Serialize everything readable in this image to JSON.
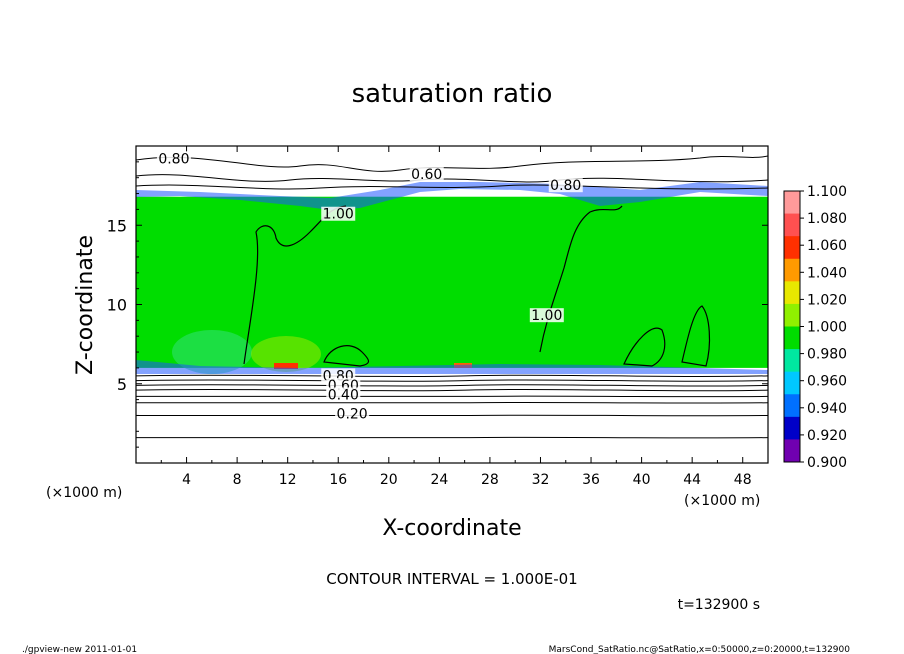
{
  "chart_data": {
    "type": "heatmap",
    "title": "saturation ratio",
    "xlabel": "X-coordinate",
    "ylabel": "Z-coordinate",
    "x_unit_left": "(×1000 m)",
    "x_unit_right": "(×1000 m)",
    "xlim": [
      0,
      50
    ],
    "ylim": [
      0,
      20
    ],
    "x_ticks": [
      4,
      8,
      12,
      16,
      20,
      24,
      28,
      32,
      36,
      40,
      44,
      48
    ],
    "y_ticks": [
      5,
      10,
      15
    ],
    "colorbar": {
      "levels": [
        "1.100",
        "1.080",
        "1.060",
        "1.040",
        "1.020",
        "1.000",
        "0.980",
        "0.960",
        "0.940",
        "0.920",
        "0.900"
      ],
      "colors": [
        "#ff9a9a",
        "#ff5050",
        "#ff3000",
        "#ff9a00",
        "#e8e800",
        "#90f000",
        "#00dd00",
        "#00e8a0",
        "#00c8ff",
        "#0070ff",
        "#0000c8",
        "#7000b0"
      ]
    },
    "contour_labels": [
      {
        "text": "0.80",
        "x": 3,
        "z": 19.1
      },
      {
        "text": "0.60",
        "x": 23,
        "z": 18.1
      },
      {
        "text": "0.80",
        "x": 34,
        "z": 17.4
      },
      {
        "text": "1.00",
        "x": 16,
        "z": 15.6
      },
      {
        "text": "1.00",
        "x": 32.5,
        "z": 9.2
      },
      {
        "text": "0.80",
        "x": 16,
        "z": 5.4
      },
      {
        "text": "0.60",
        "x": 16.4,
        "z": 4.8
      },
      {
        "text": "0.40",
        "x": 16.4,
        "z": 4.2
      },
      {
        "text": "0.20",
        "x": 17.1,
        "z": 3.0
      }
    ],
    "layers": {
      "moist_bottom": 6.0,
      "moist_top": 16.8
    },
    "contour_interval_text": "CONTOUR INTERVAL = 1.000E-01",
    "time_text": "t=132900 s"
  },
  "footer": {
    "left": "./gpview-new 2011-01-01",
    "right": "MarsCond_SatRatio.nc@SatRatio,x=0:50000,z=0:20000,t=132900"
  }
}
